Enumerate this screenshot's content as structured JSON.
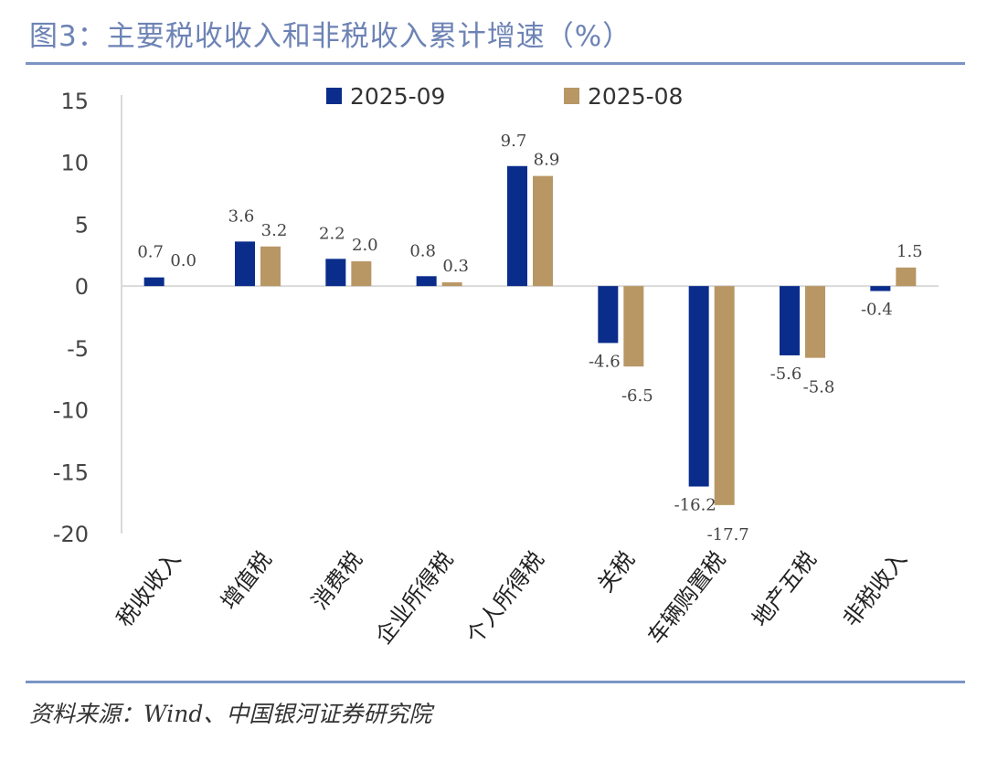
{
  "header": {
    "title": "图3：主要税收收入和非税收入累计增速（%）"
  },
  "footer": {
    "source": "资料来源：Wind、中国银河证券研究院"
  },
  "colors": {
    "series_2025_09": "#0a2d8c",
    "series_2025_08": "#b89765",
    "rule": "#7b94c4",
    "title": "#6d83b5",
    "axis": "#d9d9d9"
  },
  "chart_data": {
    "type": "bar",
    "title": "主要税收收入和非税收入累计增速（%）",
    "xlabel": "",
    "ylabel": "",
    "ylim": [
      -20,
      15
    ],
    "yticks": [
      15,
      10,
      5,
      0,
      -5,
      -10,
      -15,
      -20
    ],
    "grid": false,
    "legend_position": "top-center",
    "categories": [
      "税收收入",
      "增值税",
      "消费税",
      "企业所得税",
      "个人所得税",
      "关税",
      "车辆购置税",
      "地产五税",
      "非税收入"
    ],
    "series": [
      {
        "name": "2025-09",
        "values": [
          0.7,
          3.6,
          2.2,
          0.8,
          9.7,
          -4.6,
          -16.2,
          -5.6,
          -0.4
        ]
      },
      {
        "name": "2025-08",
        "values": [
          0.0,
          3.2,
          2.0,
          0.3,
          8.9,
          -6.5,
          -17.7,
          -5.8,
          1.5
        ]
      }
    ]
  }
}
